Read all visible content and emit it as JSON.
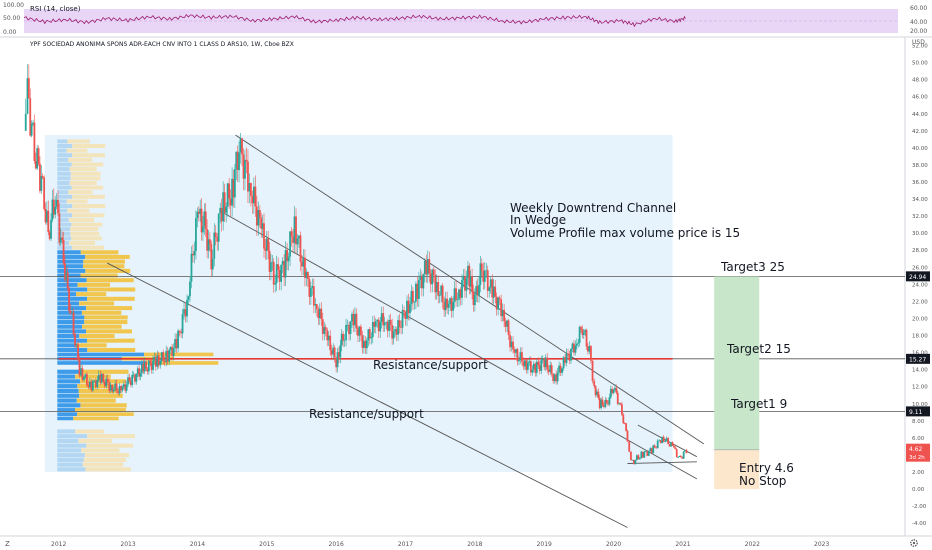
{
  "rsi": {
    "label": "RSI (14, close)",
    "ticks": [
      "100.00",
      "50.00",
      "0.00"
    ],
    "right_ticks": [
      "60.00",
      "40.00",
      "20.00"
    ],
    "band_color": "#e9d5f5",
    "line_color": "#9b1b6e"
  },
  "header": {
    "symbol_title": "YPF SOCIEDAD ANONIMA SPONS ADR-EACH CNV INTO 1 CLASS D ARS10, 1W, Cboe BZX",
    "currency": "USD"
  },
  "chart_data": {
    "type": "candlestick",
    "x_axis": {
      "labels": [
        "2012",
        "2013",
        "2014",
        "2015",
        "2016",
        "2017",
        "2018",
        "2019",
        "2020",
        "2021",
        "2022",
        "2023"
      ],
      "range": [
        2011.5,
        2024.1
      ]
    },
    "y_axis": {
      "labels": [
        "-4.00",
        "-2.00",
        "0.00",
        "2.00",
        "4.00",
        "6.00",
        "8.00",
        "10.00",
        "12.00",
        "14.00",
        "16.00",
        "18.00",
        "20.00",
        "22.00",
        "24.00",
        "26.00",
        "28.00",
        "30.00",
        "32.00",
        "34.00",
        "36.00",
        "38.00",
        "40.00",
        "42.00",
        "44.00",
        "46.00",
        "48.00",
        "50.00",
        "52.00"
      ],
      "range": [
        -5.5,
        53
      ]
    },
    "price_path": [
      [
        2011.5,
        42
      ],
      [
        2011.55,
        46
      ],
      [
        2011.65,
        40
      ],
      [
        2011.75,
        36
      ],
      [
        2011.85,
        30
      ],
      [
        2011.95,
        34
      ],
      [
        2012.05,
        28
      ],
      [
        2012.15,
        22
      ],
      [
        2012.3,
        14
      ],
      [
        2012.45,
        12
      ],
      [
        2012.6,
        13
      ],
      [
        2012.75,
        12
      ],
      [
        2012.9,
        11.5
      ],
      [
        2013.0,
        12.5
      ],
      [
        2013.2,
        14
      ],
      [
        2013.4,
        15
      ],
      [
        2013.55,
        15.5
      ],
      [
        2013.7,
        17
      ],
      [
        2013.85,
        22
      ],
      [
        2014.0,
        32
      ],
      [
        2014.1,
        31
      ],
      [
        2014.2,
        27
      ],
      [
        2014.35,
        33
      ],
      [
        2014.5,
        35
      ],
      [
        2014.6,
        40
      ],
      [
        2014.75,
        36
      ],
      [
        2014.9,
        31
      ],
      [
        2015.0,
        28
      ],
      [
        2015.1,
        25
      ],
      [
        2015.25,
        26
      ],
      [
        2015.4,
        31
      ],
      [
        2015.55,
        25
      ],
      [
        2015.7,
        22
      ],
      [
        2015.85,
        18
      ],
      [
        2016.0,
        15
      ],
      [
        2016.1,
        18
      ],
      [
        2016.25,
        20
      ],
      [
        2016.4,
        17
      ],
      [
        2016.55,
        19
      ],
      [
        2016.7,
        20
      ],
      [
        2016.85,
        18
      ],
      [
        2017.0,
        21
      ],
      [
        2017.15,
        23
      ],
      [
        2017.3,
        26
      ],
      [
        2017.45,
        24
      ],
      [
        2017.6,
        21
      ],
      [
        2017.75,
        23
      ],
      [
        2017.9,
        25
      ],
      [
        2018.0,
        22
      ],
      [
        2018.1,
        26
      ],
      [
        2018.25,
        23
      ],
      [
        2018.4,
        21
      ],
      [
        2018.55,
        16
      ],
      [
        2018.7,
        15
      ],
      [
        2018.85,
        14
      ],
      [
        2019.0,
        15
      ],
      [
        2019.15,
        13
      ],
      [
        2019.3,
        15
      ],
      [
        2019.45,
        17
      ],
      [
        2019.55,
        19
      ],
      [
        2019.65,
        16
      ],
      [
        2019.72,
        12
      ],
      [
        2019.8,
        10
      ],
      [
        2019.9,
        10
      ],
      [
        2020.0,
        12
      ],
      [
        2020.1,
        9.5
      ],
      [
        2020.2,
        6
      ],
      [
        2020.25,
        3
      ],
      [
        2020.4,
        4
      ],
      [
        2020.55,
        4.5
      ],
      [
        2020.7,
        6
      ],
      [
        2020.85,
        5
      ],
      [
        2020.95,
        3.5
      ],
      [
        2021.05,
        4.6
      ]
    ],
    "rsi_path": [
      [
        2011.5,
        55
      ],
      [
        2011.8,
        40
      ],
      [
        2012.1,
        48
      ],
      [
        2012.4,
        38
      ],
      [
        2012.7,
        52
      ],
      [
        2013.0,
        45
      ],
      [
        2013.3,
        58
      ],
      [
        2013.6,
        50
      ],
      [
        2013.9,
        62
      ],
      [
        2014.2,
        55
      ],
      [
        2014.5,
        60
      ],
      [
        2014.8,
        44
      ],
      [
        2015.1,
        50
      ],
      [
        2015.4,
        58
      ],
      [
        2015.7,
        40
      ],
      [
        2016.0,
        46
      ],
      [
        2016.3,
        55
      ],
      [
        2016.6,
        48
      ],
      [
        2016.9,
        52
      ],
      [
        2017.2,
        60
      ],
      [
        2017.5,
        50
      ],
      [
        2017.8,
        54
      ],
      [
        2018.1,
        58
      ],
      [
        2018.4,
        42
      ],
      [
        2018.7,
        38
      ],
      [
        2019.0,
        50
      ],
      [
        2019.3,
        55
      ],
      [
        2019.6,
        58
      ],
      [
        2019.8,
        38
      ],
      [
        2020.1,
        44
      ],
      [
        2020.3,
        30
      ],
      [
        2020.6,
        52
      ],
      [
        2020.9,
        42
      ],
      [
        2021.05,
        55
      ]
    ],
    "channel_lines": [
      {
        "from": [
          2014.55,
          41.5
        ],
        "to": [
          2021.3,
          5.3
        ]
      },
      {
        "from": [
          2014.35,
          32.5
        ],
        "to": [
          2021.2,
          1.2
        ]
      },
      {
        "from": [
          2012.7,
          26.5
        ],
        "to": [
          2020.2,
          -4.5
        ]
      }
    ],
    "wedge_lines": [
      {
        "from": [
          2020.35,
          7.5
        ],
        "to": [
          2021.2,
          3.8
        ]
      },
      {
        "from": [
          2020.2,
          3.0
        ],
        "to": [
          2021.2,
          3.2
        ]
      }
    ],
    "volume_profile": {
      "area": {
        "x": [
          2011.8,
          2020.85
        ],
        "y": [
          2.0,
          41.5
        ]
      },
      "fill": "#e6f3fc",
      "rows": [
        {
          "low": 2.0,
          "high": 7.0,
          "up": 0.5,
          "down": 0.8,
          "faint": true
        },
        {
          "low": 8.0,
          "high": 9.5,
          "up": 0.35,
          "down": 1.0,
          "faint": false
        },
        {
          "low": 9.5,
          "high": 14.0,
          "up": 0.4,
          "down": 0.8,
          "faint": false
        },
        {
          "low": 14.5,
          "high": 16.0,
          "up": 1.5,
          "down": 1.2,
          "faint": false
        },
        {
          "low": 16.0,
          "high": 28.0,
          "up": 0.5,
          "down": 0.8,
          "faint": false
        },
        {
          "low": 28.0,
          "high": 41.0,
          "up": 0.25,
          "down": 0.55,
          "faint": true
        }
      ]
    },
    "horizontal_levels": [
      {
        "value": 24.94,
        "label": "24.94",
        "color": "#131722",
        "line_color": "#555555"
      },
      {
        "value": 15.27,
        "label": "15.27",
        "color": "#131722",
        "line_color": "#555555"
      },
      {
        "value": 9.11,
        "label": "9.11",
        "color": "#131722",
        "line_color": "#555555"
      }
    ],
    "poc_line": {
      "value": 15.27,
      "from": 2011.5,
      "to": 2020.85,
      "color": "#e53935"
    },
    "price_badge": {
      "value": 4.62,
      "label": "4.62",
      "sub": "3d 2h",
      "color": "#ef5350"
    },
    "position_box": {
      "x": [
        2021.45,
        2022.1
      ],
      "entry": 4.6,
      "target_top": 24.94,
      "stop": 0.0,
      "profit_color": "#c8e6c9",
      "risk_color": "#fde7cc"
    },
    "candle_colors": {
      "up": "#26a69a",
      "down": "#ef5350"
    }
  },
  "annotations": {
    "channel_note": [
      "Weekly Downtrend Channel",
      "In Wedge",
      "Volume Profile max volume price is 15"
    ],
    "target3": "Target3  25",
    "target2": "Target2  15",
    "target1": "Target1  9",
    "resistance_upper": "Resistance/support",
    "resistance_lower": "Resistance/support",
    "entry": "Entry 4.6",
    "stop": "No Stop"
  },
  "toolbar": {
    "log_label": "Z",
    "settings_icon": "gear-icon"
  }
}
